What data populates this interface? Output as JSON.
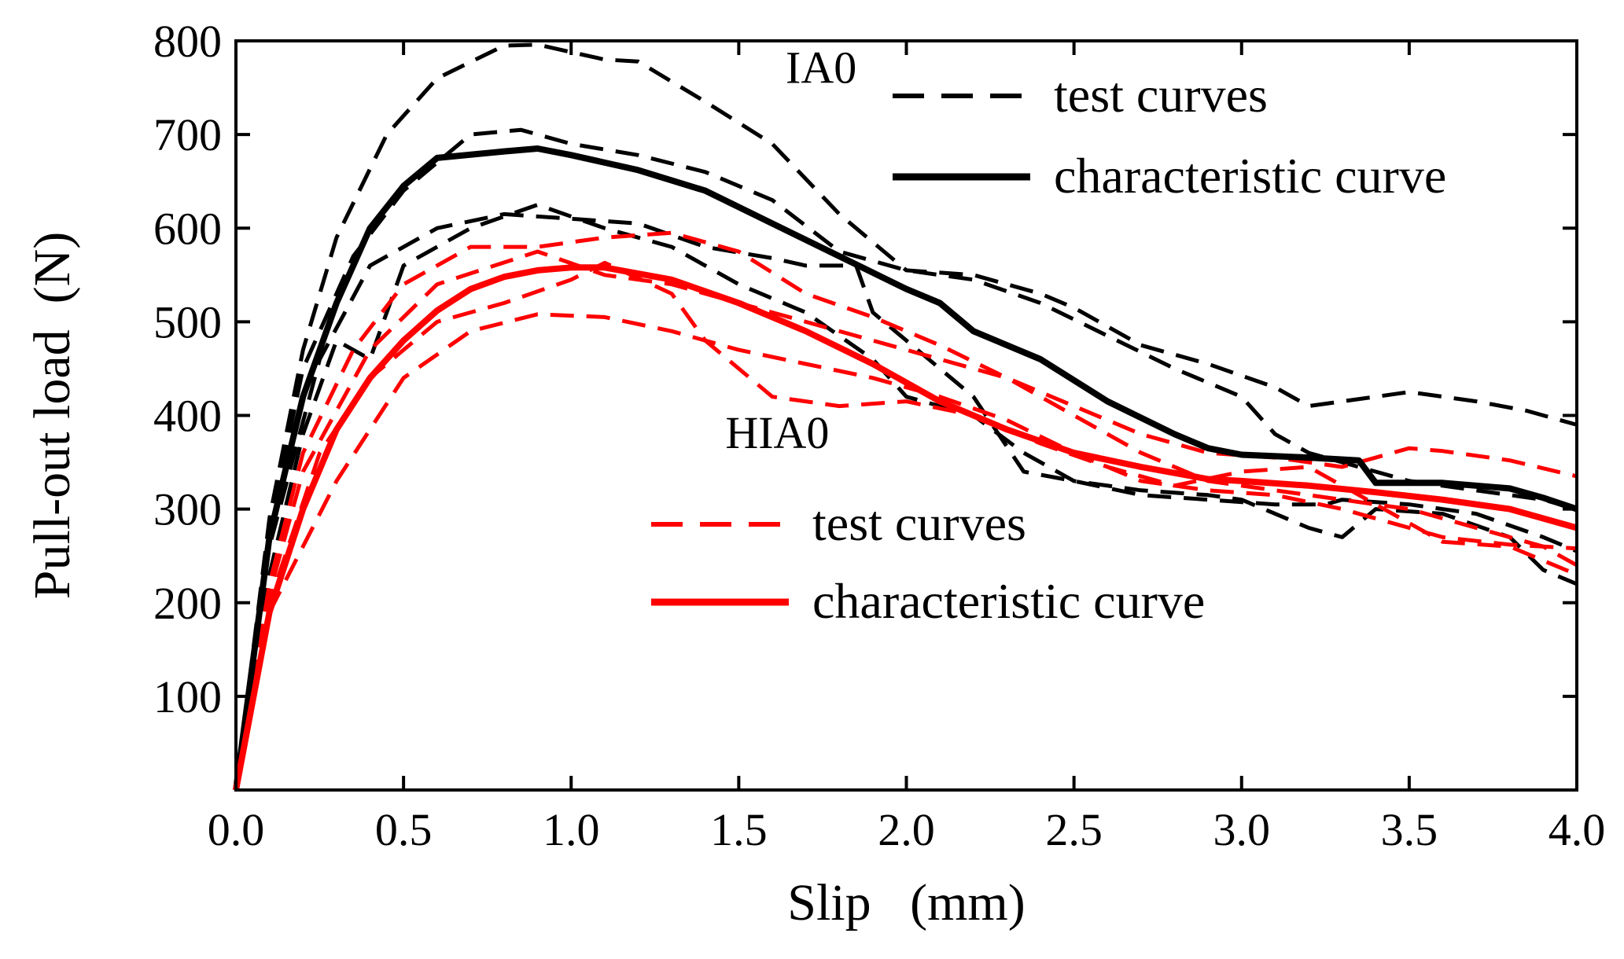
{
  "chart_data": {
    "type": "line",
    "xlabel": "Slip   (mm)",
    "ylabel": "Pull-out load  (N)",
    "xlim": [
      0,
      4
    ],
    "ylim": [
      0,
      800
    ],
    "xticks": [
      0.0,
      0.5,
      1.0,
      1.5,
      2.0,
      2.5,
      3.0,
      3.5,
      4.0
    ],
    "xtick_labels": [
      "0.0",
      "0.5",
      "1.0",
      "1.5",
      "2.0",
      "2.5",
      "3.0",
      "3.5",
      "4.0"
    ],
    "yticks": [
      100,
      200,
      300,
      400,
      500,
      600,
      700,
      800
    ],
    "ytick_labels": [
      "100",
      "200",
      "300",
      "400",
      "500",
      "600",
      "700",
      "800"
    ],
    "annotations": [
      {
        "text": "IA0",
        "x": 1.64,
        "y": 755
      },
      {
        "text": "HIA0",
        "x": 1.46,
        "y": 365
      }
    ],
    "legend": [
      {
        "group": "IA0",
        "label": "test curves",
        "color": "#000000",
        "style": "dashed"
      },
      {
        "group": "IA0",
        "label": "characteristic curve",
        "color": "#000000",
        "style": "solid"
      },
      {
        "group": "HIA0",
        "label": "test curves",
        "color": "#ff0000",
        "style": "dashed"
      },
      {
        "group": "HIA0",
        "label": "characteristic curve",
        "color": "#ff0000",
        "style": "solid"
      }
    ],
    "series": [
      {
        "name": "IA0 test 1",
        "group": "IA0",
        "color": "#000000",
        "style": "dashed",
        "points": [
          [
            0,
            0
          ],
          [
            0.1,
            290
          ],
          [
            0.2,
            470
          ],
          [
            0.3,
            590
          ],
          [
            0.45,
            700
          ],
          [
            0.6,
            760
          ],
          [
            0.8,
            795
          ],
          [
            0.9,
            796
          ],
          [
            1.1,
            780
          ],
          [
            1.2,
            778
          ],
          [
            1.4,
            735
          ],
          [
            1.6,
            690
          ],
          [
            1.8,
            615
          ],
          [
            2.0,
            555
          ],
          [
            2.2,
            550
          ],
          [
            2.4,
            530
          ],
          [
            2.5,
            515
          ],
          [
            2.7,
            475
          ],
          [
            2.9,
            455
          ],
          [
            3.1,
            430
          ],
          [
            3.2,
            410
          ],
          [
            3.4,
            420
          ],
          [
            3.5,
            425
          ],
          [
            3.7,
            415
          ],
          [
            3.85,
            405
          ],
          [
            4.0,
            390
          ]
        ]
      },
      {
        "name": "IA0 test 2",
        "group": "IA0",
        "color": "#000000",
        "style": "dashed",
        "points": [
          [
            0,
            0
          ],
          [
            0.1,
            280
          ],
          [
            0.2,
            450
          ],
          [
            0.35,
            570
          ],
          [
            0.5,
            640
          ],
          [
            0.7,
            700
          ],
          [
            0.85,
            705
          ],
          [
            1.0,
            690
          ],
          [
            1.2,
            678
          ],
          [
            1.4,
            660
          ],
          [
            1.6,
            630
          ],
          [
            1.8,
            575
          ],
          [
            2.0,
            555
          ],
          [
            2.2,
            545
          ],
          [
            2.4,
            520
          ],
          [
            2.6,
            485
          ],
          [
            2.8,
            450
          ],
          [
            3.0,
            420
          ],
          [
            3.1,
            380
          ],
          [
            3.2,
            360
          ],
          [
            3.3,
            350
          ],
          [
            3.5,
            330
          ],
          [
            3.7,
            320
          ],
          [
            3.9,
            310
          ],
          [
            4.0,
            300
          ]
        ]
      },
      {
        "name": "IA0 test 3",
        "group": "IA0",
        "color": "#000000",
        "style": "dashed",
        "points": [
          [
            0,
            0
          ],
          [
            0.1,
            260
          ],
          [
            0.25,
            460
          ],
          [
            0.4,
            560
          ],
          [
            0.6,
            600
          ],
          [
            0.8,
            615
          ],
          [
            1.0,
            610
          ],
          [
            1.2,
            605
          ],
          [
            1.4,
            580
          ],
          [
            1.6,
            568
          ],
          [
            1.7,
            560
          ],
          [
            1.85,
            560
          ],
          [
            1.9,
            510
          ],
          [
            2.0,
            480
          ],
          [
            2.2,
            420
          ],
          [
            2.35,
            340
          ],
          [
            2.5,
            330
          ],
          [
            2.7,
            315
          ],
          [
            2.9,
            310
          ],
          [
            3.1,
            305
          ],
          [
            3.25,
            305
          ],
          [
            3.3,
            310
          ],
          [
            3.5,
            305
          ],
          [
            3.7,
            295
          ],
          [
            3.9,
            270
          ],
          [
            4.0,
            255
          ]
        ]
      },
      {
        "name": "IA0 test 4",
        "group": "IA0",
        "color": "#000000",
        "style": "dashed",
        "points": [
          [
            0,
            0
          ],
          [
            0.1,
            230
          ],
          [
            0.2,
            380
          ],
          [
            0.3,
            480
          ],
          [
            0.4,
            460
          ],
          [
            0.5,
            560
          ],
          [
            0.7,
            600
          ],
          [
            0.9,
            625
          ],
          [
            1.1,
            600
          ],
          [
            1.3,
            580
          ],
          [
            1.5,
            540
          ],
          [
            1.7,
            510
          ],
          [
            1.9,
            460
          ],
          [
            2.0,
            420
          ],
          [
            2.2,
            400
          ],
          [
            2.35,
            360
          ],
          [
            2.5,
            330
          ],
          [
            2.7,
            320
          ],
          [
            2.9,
            315
          ],
          [
            3.0,
            310
          ],
          [
            3.2,
            280
          ],
          [
            3.3,
            270
          ],
          [
            3.4,
            300
          ],
          [
            3.6,
            295
          ],
          [
            3.8,
            270
          ],
          [
            3.9,
            235
          ],
          [
            4.0,
            220
          ]
        ]
      },
      {
        "name": "IA0 characteristic",
        "group": "IA0",
        "color": "#000000",
        "style": "solid",
        "points": [
          [
            0,
            0
          ],
          [
            0.1,
            270
          ],
          [
            0.2,
            420
          ],
          [
            0.3,
            520
          ],
          [
            0.4,
            600
          ],
          [
            0.5,
            645
          ],
          [
            0.6,
            675
          ],
          [
            0.8,
            682
          ],
          [
            0.9,
            685
          ],
          [
            1.0,
            678
          ],
          [
            1.2,
            662
          ],
          [
            1.4,
            640
          ],
          [
            1.6,
            605
          ],
          [
            1.8,
            570
          ],
          [
            2.0,
            535
          ],
          [
            2.1,
            520
          ],
          [
            2.2,
            490
          ],
          [
            2.4,
            460
          ],
          [
            2.6,
            415
          ],
          [
            2.8,
            380
          ],
          [
            2.9,
            365
          ],
          [
            3.0,
            358
          ],
          [
            3.2,
            355
          ],
          [
            3.35,
            352
          ],
          [
            3.4,
            328
          ],
          [
            3.6,
            328
          ],
          [
            3.8,
            322
          ],
          [
            3.9,
            312
          ],
          [
            4.0,
            300
          ]
        ]
      },
      {
        "name": "HIA0 test 1",
        "group": "HIA0",
        "color": "#ff0000",
        "style": "dashed",
        "points": [
          [
            0,
            0
          ],
          [
            0.1,
            220
          ],
          [
            0.2,
            360
          ],
          [
            0.35,
            470
          ],
          [
            0.5,
            540
          ],
          [
            0.7,
            580
          ],
          [
            0.9,
            580
          ],
          [
            1.1,
            590
          ],
          [
            1.3,
            595
          ],
          [
            1.5,
            575
          ],
          [
            1.7,
            530
          ],
          [
            1.9,
            505
          ],
          [
            2.1,
            475
          ],
          [
            2.3,
            440
          ],
          [
            2.5,
            410
          ],
          [
            2.7,
            380
          ],
          [
            2.9,
            360
          ],
          [
            3.1,
            355
          ],
          [
            3.3,
            345
          ],
          [
            3.5,
            365
          ],
          [
            3.6,
            362
          ],
          [
            3.8,
            352
          ],
          [
            4.0,
            335
          ]
        ]
      },
      {
        "name": "HIA0 test 2",
        "group": "HIA0",
        "color": "#ff0000",
        "style": "dashed",
        "points": [
          [
            0,
            0
          ],
          [
            0.1,
            210
          ],
          [
            0.2,
            340
          ],
          [
            0.4,
            470
          ],
          [
            0.6,
            540
          ],
          [
            0.9,
            575
          ],
          [
            1.1,
            550
          ],
          [
            1.3,
            540
          ],
          [
            1.5,
            520
          ],
          [
            1.7,
            500
          ],
          [
            1.9,
            480
          ],
          [
            2.1,
            460
          ],
          [
            2.3,
            440
          ],
          [
            2.5,
            400
          ],
          [
            2.7,
            360
          ],
          [
            2.9,
            330
          ],
          [
            3.1,
            320
          ],
          [
            3.3,
            310
          ],
          [
            3.5,
            300
          ],
          [
            3.7,
            280
          ],
          [
            3.9,
            260
          ],
          [
            4.0,
            240
          ]
        ]
      },
      {
        "name": "HIA0 test 3",
        "group": "HIA0",
        "color": "#ff0000",
        "style": "dashed",
        "points": [
          [
            0,
            0
          ],
          [
            0.1,
            200
          ],
          [
            0.25,
            360
          ],
          [
            0.4,
            440
          ],
          [
            0.6,
            500
          ],
          [
            0.8,
            520
          ],
          [
            1.0,
            545
          ],
          [
            1.1,
            563
          ],
          [
            1.3,
            530
          ],
          [
            1.4,
            480
          ],
          [
            1.6,
            420
          ],
          [
            1.8,
            410
          ],
          [
            2.0,
            415
          ],
          [
            2.2,
            400
          ],
          [
            2.4,
            370
          ],
          [
            2.6,
            345
          ],
          [
            2.8,
            325
          ],
          [
            3.0,
            340
          ],
          [
            3.2,
            345
          ],
          [
            3.4,
            305
          ],
          [
            3.6,
            265
          ],
          [
            3.8,
            260
          ],
          [
            4.0,
            230
          ]
        ]
      },
      {
        "name": "HIA0 test 4",
        "group": "HIA0",
        "color": "#ff0000",
        "style": "dashed",
        "points": [
          [
            0,
            0
          ],
          [
            0.1,
            190
          ],
          [
            0.3,
            330
          ],
          [
            0.5,
            440
          ],
          [
            0.7,
            490
          ],
          [
            0.9,
            508
          ],
          [
            1.1,
            505
          ],
          [
            1.3,
            490
          ],
          [
            1.5,
            470
          ],
          [
            1.7,
            455
          ],
          [
            1.9,
            440
          ],
          [
            2.1,
            420
          ],
          [
            2.3,
            395
          ],
          [
            2.5,
            360
          ],
          [
            2.7,
            330
          ],
          [
            2.9,
            320
          ],
          [
            3.1,
            315
          ],
          [
            3.3,
            300
          ],
          [
            3.5,
            280
          ],
          [
            3.6,
            270
          ],
          [
            3.8,
            262
          ],
          [
            4.0,
            258
          ]
        ]
      },
      {
        "name": "HIA0 characteristic",
        "group": "HIA0",
        "color": "#ff0000",
        "style": "solid",
        "points": [
          [
            0,
            0
          ],
          [
            0.1,
            190
          ],
          [
            0.2,
            300
          ],
          [
            0.3,
            385
          ],
          [
            0.4,
            440
          ],
          [
            0.5,
            480
          ],
          [
            0.6,
            512
          ],
          [
            0.7,
            535
          ],
          [
            0.8,
            548
          ],
          [
            0.9,
            555
          ],
          [
            1.0,
            558
          ],
          [
            1.1,
            558
          ],
          [
            1.3,
            545
          ],
          [
            1.5,
            520
          ],
          [
            1.7,
            490
          ],
          [
            1.9,
            455
          ],
          [
            2.1,
            415
          ],
          [
            2.3,
            385
          ],
          [
            2.5,
            360
          ],
          [
            2.7,
            345
          ],
          [
            2.9,
            332
          ],
          [
            3.0,
            330
          ],
          [
            3.2,
            325
          ],
          [
            3.4,
            318
          ],
          [
            3.6,
            310
          ],
          [
            3.8,
            300
          ],
          [
            4.0,
            280
          ]
        ]
      }
    ]
  }
}
